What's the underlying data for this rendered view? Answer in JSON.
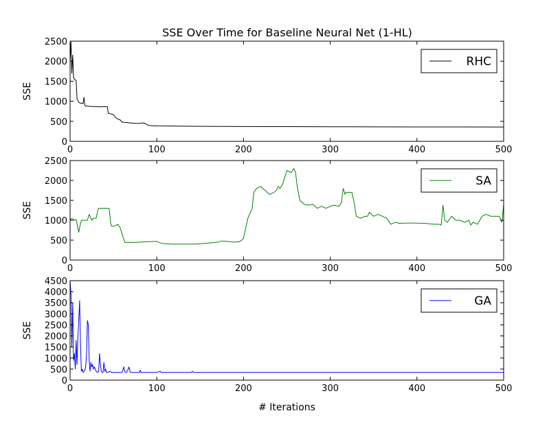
{
  "chart_data": [
    {
      "type": "line",
      "title": "SSE Over Time for Baseline Neural Net (1-HL)",
      "xlabel": "",
      "ylabel": "SSE",
      "xlim": [
        0,
        500
      ],
      "ylim": [
        0,
        2500
      ],
      "xticks": [
        0,
        100,
        200,
        300,
        400,
        500
      ],
      "yticks": [
        0,
        500,
        1000,
        1500,
        2000,
        2500
      ],
      "grid": false,
      "legend": "top-right",
      "series": [
        {
          "name": "RHC",
          "color": "#000000",
          "x": [
            0,
            1,
            2,
            3,
            4,
            5,
            6,
            7,
            8,
            10,
            11,
            13,
            15,
            16,
            17,
            18,
            20,
            25,
            30,
            35,
            40,
            43,
            44,
            46,
            50,
            52,
            55,
            58,
            60,
            65,
            70,
            75,
            80,
            85,
            90,
            92,
            95,
            100,
            120,
            150,
            200,
            250,
            300,
            350,
            400,
            450,
            500
          ],
          "y": [
            2000,
            2480,
            1700,
            2150,
            1600,
            1550,
            1530,
            1520,
            1060,
            980,
            960,
            950,
            940,
            1100,
            900,
            880,
            880,
            870,
            870,
            860,
            870,
            860,
            700,
            690,
            670,
            600,
            560,
            530,
            480,
            470,
            460,
            450,
            450,
            460,
            400,
            395,
            390,
            385,
            380,
            375,
            370,
            368,
            365,
            362,
            360,
            360,
            358
          ]
        }
      ]
    },
    {
      "type": "line",
      "title": "",
      "xlabel": "",
      "ylabel": "SSE",
      "xlim": [
        0,
        500
      ],
      "ylim": [
        0,
        2500
      ],
      "xticks": [
        0,
        100,
        200,
        300,
        400,
        500
      ],
      "yticks": [
        0,
        500,
        1000,
        1500,
        2000,
        2500
      ],
      "grid": false,
      "legend": "top-right",
      "series": [
        {
          "name": "SA",
          "color": "#008000",
          "x": [
            0,
            2,
            5,
            7,
            10,
            11,
            13,
            15,
            20,
            22,
            25,
            27,
            30,
            32,
            33,
            35,
            40,
            45,
            47,
            48,
            50,
            53,
            55,
            58,
            60,
            63,
            65,
            68,
            70,
            80,
            90,
            100,
            102,
            105,
            110,
            120,
            130,
            140,
            150,
            160,
            170,
            175,
            180,
            190,
            195,
            198,
            200,
            202,
            205,
            208,
            210,
            212,
            215,
            220,
            222,
            225,
            230,
            235,
            238,
            240,
            242,
            245,
            250,
            255,
            258,
            260,
            262,
            265,
            270,
            275,
            280,
            285,
            290,
            295,
            300,
            305,
            310,
            313,
            315,
            317,
            318,
            320,
            325,
            328,
            330,
            335,
            340,
            343,
            345,
            350,
            355,
            360,
            365,
            370,
            375,
            380,
            385,
            390,
            400,
            410,
            420,
            425,
            428,
            430,
            432,
            435,
            440,
            445,
            450,
            455,
            460,
            462,
            465,
            470,
            475,
            480,
            485,
            490,
            495,
            498,
            500
          ],
          "y": [
            1000,
            1050,
            1000,
            1020,
            700,
            820,
            1000,
            1000,
            1000,
            1150,
            1000,
            1050,
            1050,
            1250,
            1300,
            1300,
            1300,
            1300,
            900,
            850,
            850,
            870,
            900,
            800,
            650,
            450,
            440,
            445,
            440,
            450,
            460,
            470,
            450,
            420,
            410,
            400,
            400,
            400,
            410,
            430,
            450,
            480,
            470,
            450,
            460,
            500,
            550,
            750,
            1050,
            1200,
            1300,
            1700,
            1800,
            1850,
            1800,
            1750,
            1650,
            1700,
            1750,
            1850,
            1800,
            1900,
            2250,
            2200,
            2300,
            2200,
            1850,
            1500,
            1400,
            1380,
            1400,
            1300,
            1350,
            1300,
            1350,
            1380,
            1350,
            1450,
            1800,
            1650,
            1700,
            1700,
            1700,
            1400,
            1100,
            1050,
            1100,
            1100,
            1200,
            1100,
            1150,
            1100,
            1050,
            900,
            950,
            920,
            930,
            930,
            930,
            920,
            900,
            900,
            880,
            1380,
            1000,
            950,
            1100,
            1000,
            1000,
            950,
            1000,
            880,
            950,
            900,
            1100,
            1150,
            1100,
            1100,
            1100,
            950,
            1400
          ]
        }
      ]
    },
    {
      "type": "line",
      "title": "",
      "xlabel": "# Iterations",
      "ylabel": "SSE",
      "xlim": [
        0,
        500
      ],
      "ylim": [
        0,
        4500
      ],
      "xticks": [
        0,
        100,
        200,
        300,
        400,
        500
      ],
      "yticks": [
        0,
        500,
        1000,
        1500,
        2000,
        2500,
        3000,
        3500,
        4000,
        4500
      ],
      "grid": false,
      "legend": "top-right",
      "series": [
        {
          "name": "GA",
          "color": "#0000ff",
          "x": [
            0,
            1,
            2,
            3,
            4,
            5,
            6,
            7,
            8,
            9,
            10,
            11,
            12,
            13,
            14,
            15,
            16,
            17,
            18,
            19,
            20,
            21,
            22,
            23,
            24,
            25,
            26,
            27,
            28,
            30,
            32,
            33,
            34,
            35,
            36,
            37,
            38,
            39,
            40,
            41,
            42,
            44,
            46,
            48,
            50,
            55,
            60,
            62,
            63,
            64,
            65,
            67,
            68,
            69,
            70,
            75,
            80,
            81,
            82,
            90,
            100,
            104,
            105,
            106,
            110,
            120,
            140,
            141,
            142,
            150,
            200,
            250,
            300,
            350,
            400,
            450,
            500
          ],
          "y": [
            4500,
            3900,
            1500,
            3500,
            900,
            1200,
            500,
            1800,
            700,
            2000,
            2700,
            3600,
            1700,
            400,
            500,
            350,
            400,
            450,
            600,
            1200,
            2700,
            2500,
            900,
            400,
            800,
            600,
            700,
            500,
            600,
            400,
            350,
            400,
            1200,
            700,
            400,
            350,
            350,
            800,
            400,
            500,
            350,
            350,
            400,
            350,
            350,
            350,
            350,
            600,
            400,
            350,
            350,
            500,
            600,
            400,
            350,
            350,
            350,
            450,
            350,
            350,
            350,
            400,
            350,
            350,
            350,
            350,
            350,
            400,
            350,
            350,
            350,
            350,
            350,
            350,
            350,
            350,
            350
          ]
        }
      ]
    }
  ]
}
